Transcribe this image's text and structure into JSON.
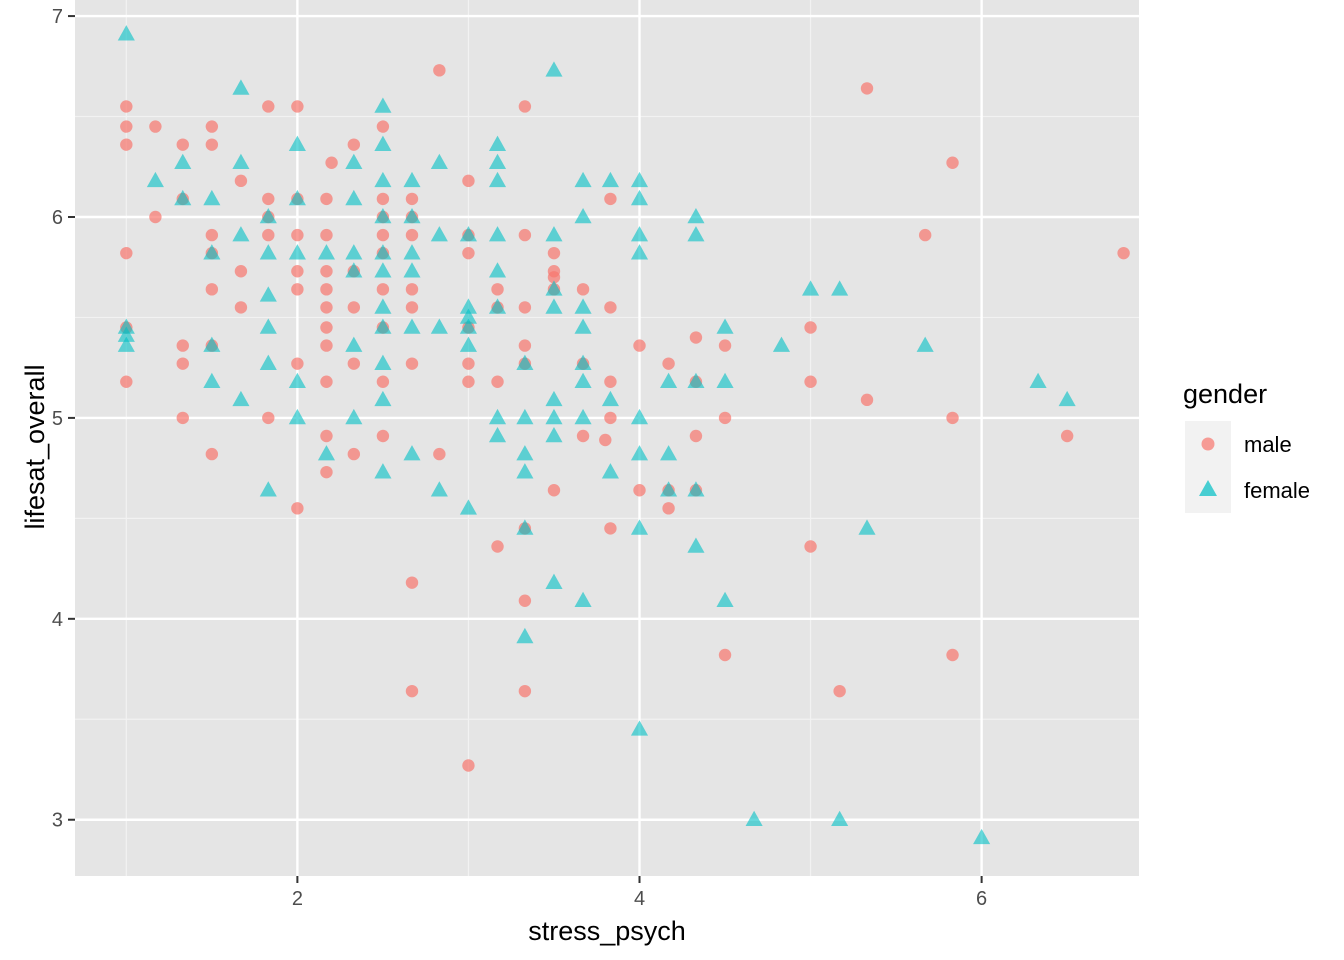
{
  "colors": {
    "panel_bg": "#e5e5e5",
    "grid_major": "#ffffff",
    "grid_minor": "#f2f2f2",
    "male": "#f8766d",
    "female": "#00bfc4",
    "legend_key_bg": "#f2f2f2"
  },
  "chart_data": {
    "type": "scatter",
    "title": "",
    "xlabel": "stress_psych",
    "ylabel": "lifesat_overall",
    "xlim": [
      0.7,
      6.92
    ],
    "ylim": [
      2.72,
      7.08
    ],
    "xticks": [
      2,
      4,
      6
    ],
    "yticks": [
      3,
      4,
      5,
      6,
      7
    ],
    "grid": true,
    "legend": {
      "title": "gender",
      "position": "right"
    },
    "series": [
      {
        "name": "male",
        "shape": "circle",
        "points": [
          [
            1,
            6.55
          ],
          [
            1,
            6.45
          ],
          [
            1,
            6.36
          ],
          [
            1,
            5.82
          ],
          [
            1,
            5.45
          ],
          [
            1,
            5.18
          ],
          [
            1.17,
            6.45
          ],
          [
            1.17,
            6.0
          ],
          [
            1.33,
            6.36
          ],
          [
            1.33,
            6.09
          ],
          [
            1.33,
            5.36
          ],
          [
            1.33,
            5.27
          ],
          [
            1.33,
            5.0
          ],
          [
            1.5,
            6.45
          ],
          [
            1.5,
            6.36
          ],
          [
            1.5,
            5.91
          ],
          [
            1.5,
            5.82
          ],
          [
            1.5,
            5.64
          ],
          [
            1.5,
            5.36
          ],
          [
            1.5,
            4.82
          ],
          [
            1.67,
            6.18
          ],
          [
            1.67,
            5.73
          ],
          [
            1.67,
            5.55
          ],
          [
            1.83,
            6.55
          ],
          [
            1.83,
            6.09
          ],
          [
            1.83,
            6.0
          ],
          [
            1.83,
            5.91
          ],
          [
            1.83,
            5.0
          ],
          [
            2,
            6.55
          ],
          [
            2,
            6.09
          ],
          [
            2,
            5.91
          ],
          [
            2,
            5.73
          ],
          [
            2,
            5.64
          ],
          [
            2,
            5.27
          ],
          [
            2,
            4.55
          ],
          [
            2.17,
            6.09
          ],
          [
            2.17,
            5.91
          ],
          [
            2.17,
            5.73
          ],
          [
            2.17,
            5.64
          ],
          [
            2.17,
            5.55
          ],
          [
            2.17,
            5.45
          ],
          [
            2.17,
            5.36
          ],
          [
            2.17,
            5.18
          ],
          [
            2.17,
            4.91
          ],
          [
            2.17,
            4.73
          ],
          [
            2.2,
            6.27
          ],
          [
            2.33,
            6.36
          ],
          [
            2.33,
            5.73
          ],
          [
            2.33,
            5.55
          ],
          [
            2.33,
            5.27
          ],
          [
            2.33,
            4.82
          ],
          [
            2.5,
            6.45
          ],
          [
            2.5,
            6.09
          ],
          [
            2.5,
            6.0
          ],
          [
            2.5,
            5.91
          ],
          [
            2.5,
            5.82
          ],
          [
            2.5,
            5.64
          ],
          [
            2.5,
            5.45
          ],
          [
            2.5,
            5.18
          ],
          [
            2.5,
            4.91
          ],
          [
            2.67,
            6.09
          ],
          [
            2.67,
            6.0
          ],
          [
            2.67,
            5.91
          ],
          [
            2.67,
            5.64
          ],
          [
            2.67,
            5.55
          ],
          [
            2.67,
            5.27
          ],
          [
            2.67,
            4.18
          ],
          [
            2.67,
            3.64
          ],
          [
            2.83,
            6.73
          ],
          [
            2.83,
            4.82
          ],
          [
            3,
            6.18
          ],
          [
            3,
            5.91
          ],
          [
            3,
            5.82
          ],
          [
            3,
            5.45
          ],
          [
            3,
            5.27
          ],
          [
            3,
            5.18
          ],
          [
            3,
            3.27
          ],
          [
            3.17,
            5.64
          ],
          [
            3.17,
            5.55
          ],
          [
            3.17,
            5.18
          ],
          [
            3.17,
            4.36
          ],
          [
            3.33,
            6.55
          ],
          [
            3.33,
            5.91
          ],
          [
            3.33,
            5.55
          ],
          [
            3.33,
            5.36
          ],
          [
            3.33,
            5.27
          ],
          [
            3.33,
            4.45
          ],
          [
            3.33,
            4.09
          ],
          [
            3.33,
            3.64
          ],
          [
            3.5,
            5.82
          ],
          [
            3.5,
            5.73
          ],
          [
            3.5,
            5.7
          ],
          [
            3.5,
            5.64
          ],
          [
            3.5,
            4.64
          ],
          [
            3.67,
            5.64
          ],
          [
            3.67,
            5.27
          ],
          [
            3.67,
            4.91
          ],
          [
            3.8,
            4.89
          ],
          [
            3.83,
            6.09
          ],
          [
            3.83,
            5.55
          ],
          [
            3.83,
            5.18
          ],
          [
            3.83,
            5.0
          ],
          [
            3.83,
            4.45
          ],
          [
            4,
            5.36
          ],
          [
            4,
            4.64
          ],
          [
            4.17,
            5.27
          ],
          [
            4.17,
            4.64
          ],
          [
            4.17,
            4.55
          ],
          [
            4.33,
            5.4
          ],
          [
            4.33,
            5.18
          ],
          [
            4.33,
            4.91
          ],
          [
            4.33,
            4.64
          ],
          [
            4.5,
            5.36
          ],
          [
            4.5,
            5.0
          ],
          [
            4.5,
            3.82
          ],
          [
            5,
            5.45
          ],
          [
            5,
            5.18
          ],
          [
            5,
            4.36
          ],
          [
            5.17,
            3.64
          ],
          [
            5.33,
            6.64
          ],
          [
            5.33,
            5.09
          ],
          [
            5.67,
            5.91
          ],
          [
            5.83,
            6.27
          ],
          [
            5.83,
            5.0
          ],
          [
            5.83,
            3.82
          ],
          [
            6.5,
            4.91
          ],
          [
            6.83,
            5.82
          ]
        ]
      },
      {
        "name": "female",
        "shape": "triangle",
        "points": [
          [
            1,
            6.91
          ],
          [
            1,
            5.45
          ],
          [
            1,
            5.41
          ],
          [
            1,
            5.36
          ],
          [
            1.17,
            6.18
          ],
          [
            1.33,
            6.27
          ],
          [
            1.33,
            6.09
          ],
          [
            1.5,
            6.09
          ],
          [
            1.5,
            5.82
          ],
          [
            1.5,
            5.36
          ],
          [
            1.5,
            5.18
          ],
          [
            1.67,
            6.64
          ],
          [
            1.67,
            6.27
          ],
          [
            1.67,
            5.91
          ],
          [
            1.67,
            5.09
          ],
          [
            1.83,
            6.0
          ],
          [
            1.83,
            5.82
          ],
          [
            1.83,
            5.61
          ],
          [
            1.83,
            5.45
          ],
          [
            1.83,
            5.27
          ],
          [
            1.83,
            4.64
          ],
          [
            2,
            6.36
          ],
          [
            2,
            6.09
          ],
          [
            2,
            5.82
          ],
          [
            2,
            5.18
          ],
          [
            2,
            5.0
          ],
          [
            2.17,
            5.82
          ],
          [
            2.17,
            4.82
          ],
          [
            2.33,
            6.27
          ],
          [
            2.33,
            6.09
          ],
          [
            2.33,
            5.82
          ],
          [
            2.33,
            5.73
          ],
          [
            2.33,
            5.36
          ],
          [
            2.33,
            5.0
          ],
          [
            2.5,
            6.55
          ],
          [
            2.5,
            6.36
          ],
          [
            2.5,
            6.18
          ],
          [
            2.5,
            6.0
          ],
          [
            2.5,
            5.82
          ],
          [
            2.5,
            5.73
          ],
          [
            2.5,
            5.55
          ],
          [
            2.5,
            5.45
          ],
          [
            2.5,
            5.27
          ],
          [
            2.5,
            5.09
          ],
          [
            2.5,
            4.73
          ],
          [
            2.67,
            6.18
          ],
          [
            2.67,
            6.0
          ],
          [
            2.67,
            5.82
          ],
          [
            2.67,
            5.73
          ],
          [
            2.67,
            5.45
          ],
          [
            2.67,
            4.82
          ],
          [
            2.83,
            6.27
          ],
          [
            2.83,
            5.91
          ],
          [
            2.83,
            5.45
          ],
          [
            2.83,
            4.64
          ],
          [
            3,
            5.91
          ],
          [
            3,
            5.55
          ],
          [
            3,
            5.5
          ],
          [
            3,
            5.45
          ],
          [
            3,
            5.36
          ],
          [
            3,
            4.55
          ],
          [
            3.17,
            6.36
          ],
          [
            3.17,
            6.27
          ],
          [
            3.17,
            6.18
          ],
          [
            3.17,
            5.91
          ],
          [
            3.17,
            5.73
          ],
          [
            3.17,
            5.55
          ],
          [
            3.17,
            5.0
          ],
          [
            3.17,
            4.91
          ],
          [
            3.33,
            5.27
          ],
          [
            3.33,
            5.0
          ],
          [
            3.33,
            4.82
          ],
          [
            3.33,
            4.73
          ],
          [
            3.33,
            4.45
          ],
          [
            3.33,
            3.91
          ],
          [
            3.5,
            6.73
          ],
          [
            3.5,
            5.91
          ],
          [
            3.5,
            5.64
          ],
          [
            3.5,
            5.55
          ],
          [
            3.5,
            5.09
          ],
          [
            3.5,
            5.0
          ],
          [
            3.5,
            4.91
          ],
          [
            3.5,
            4.18
          ],
          [
            3.67,
            6.18
          ],
          [
            3.67,
            6.0
          ],
          [
            3.67,
            5.55
          ],
          [
            3.67,
            5.45
          ],
          [
            3.67,
            5.27
          ],
          [
            3.67,
            5.18
          ],
          [
            3.67,
            5.0
          ],
          [
            3.67,
            4.09
          ],
          [
            3.83,
            6.18
          ],
          [
            3.83,
            5.09
          ],
          [
            3.83,
            4.73
          ],
          [
            4,
            6.18
          ],
          [
            4,
            6.09
          ],
          [
            4,
            5.91
          ],
          [
            4,
            5.82
          ],
          [
            4,
            5.0
          ],
          [
            4,
            4.82
          ],
          [
            4,
            4.45
          ],
          [
            4,
            3.45
          ],
          [
            4.17,
            5.18
          ],
          [
            4.17,
            4.82
          ],
          [
            4.17,
            4.64
          ],
          [
            4.33,
            6.0
          ],
          [
            4.33,
            5.91
          ],
          [
            4.33,
            5.18
          ],
          [
            4.33,
            4.64
          ],
          [
            4.33,
            4.36
          ],
          [
            4.5,
            5.45
          ],
          [
            4.5,
            5.18
          ],
          [
            4.5,
            4.09
          ],
          [
            4.67,
            3.0
          ],
          [
            4.83,
            5.36
          ],
          [
            5,
            5.64
          ],
          [
            5.17,
            5.64
          ],
          [
            5.17,
            3.0
          ],
          [
            5.33,
            4.45
          ],
          [
            5.67,
            5.36
          ],
          [
            6,
            2.91
          ],
          [
            6.33,
            5.18
          ],
          [
            6.5,
            5.09
          ]
        ]
      }
    ]
  }
}
